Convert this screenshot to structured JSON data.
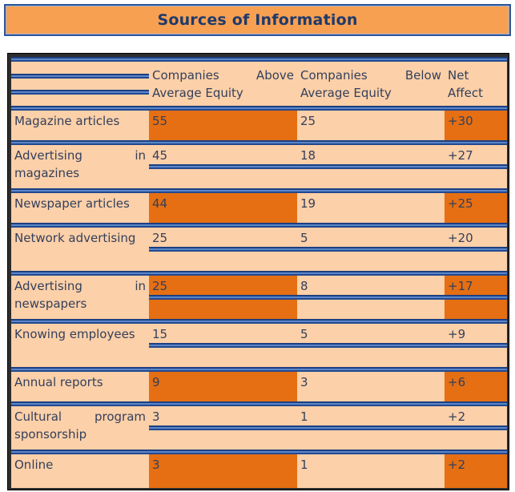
{
  "title": "Sources of Information",
  "table": {
    "headers": [
      "",
      "Companies Above Average Equity",
      "Companies Below Average Equity",
      "Net Affect"
    ],
    "rows": [
      {
        "label": "Magazine articles",
        "above": "55",
        "below": "25",
        "net": "+30",
        "highlight": true
      },
      {
        "label": "Advertising in magazines",
        "above": "45",
        "below": "18",
        "net": "+27",
        "highlight": false
      },
      {
        "label": "Newspaper articles",
        "above": "44",
        "below": "19",
        "net": "+25",
        "highlight": true
      },
      {
        "label": "Network advertising",
        "above": "25",
        "below": "5",
        "net": "+20",
        "highlight": false
      },
      {
        "label": "Advertising in newspapers",
        "above": "25",
        "below": "8",
        "net": "+17",
        "highlight": true
      },
      {
        "label": "Knowing employees",
        "above": "15",
        "below": "5",
        "net": "+9",
        "highlight": false
      },
      {
        "label": "Annual reports",
        "above": "9",
        "below": "3",
        "net": "+6",
        "highlight": true
      },
      {
        "label": "Cultural program sponsorship",
        "above": "3",
        "below": "1",
        "net": "+2",
        "highlight": false
      },
      {
        "label": "Online",
        "above": "3",
        "below": "1",
        "net": "+2",
        "highlight": true
      }
    ]
  },
  "colors": {
    "title_bg": "#f7a052",
    "cell_bg": "#fcd0a8",
    "highlight": "#e56f12",
    "separator": "#2f5597",
    "text": "#333f5c"
  }
}
